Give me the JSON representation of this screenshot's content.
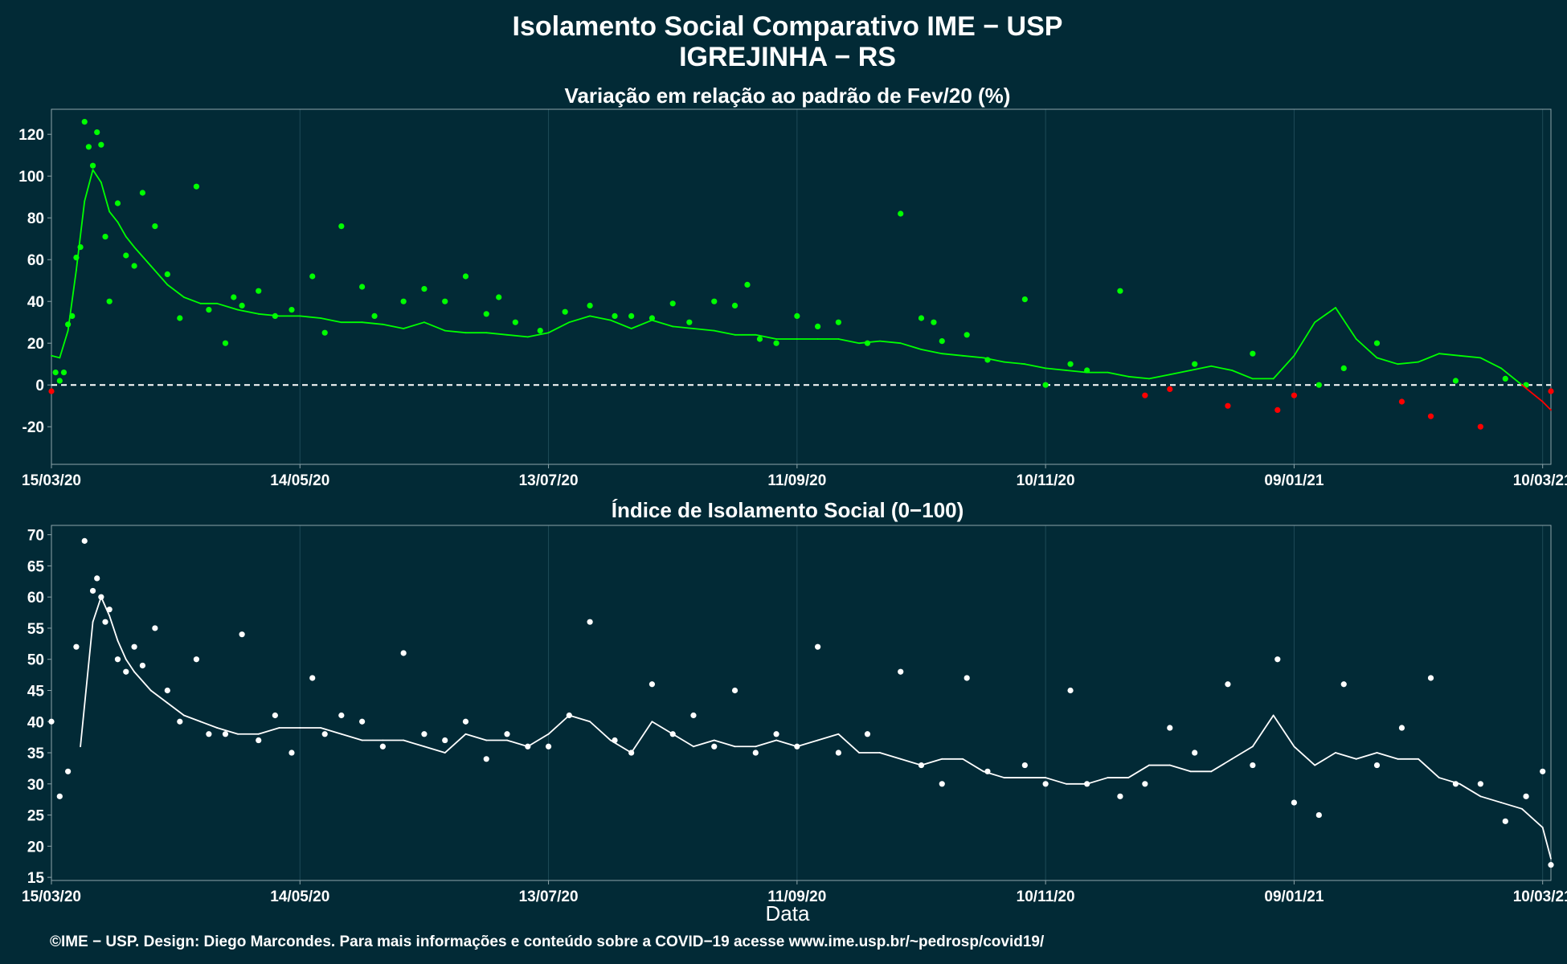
{
  "title_line1": "Isolamento Social Comparativo IME − USP",
  "title_line2": "IGREJINHA − RS",
  "caption": "©IME − USP. Design: Diego Marcondes. Para mais informações e conteúdo sobre a COVID−19 acesse www.ime.usp.br/~pedrosp/covid19/",
  "colors": {
    "background": "#022a36",
    "positive": "#00ff00",
    "negative": "#ff0000",
    "index": "#ffffff",
    "grid": "#1e4a57",
    "frame": "#8ea4aa"
  },
  "chart_data": [
    {
      "type": "scatter",
      "title": "Variação em relação ao padrão de Fev/20 (%)",
      "xlabel": "",
      "x_ticks": [
        "15/03/20",
        "14/05/20",
        "13/07/20",
        "11/09/20",
        "10/11/20",
        "09/01/21",
        "10/03/21"
      ],
      "x_range": [
        "15/03/20",
        "12/03/21"
      ],
      "ylim": [
        -38,
        132
      ],
      "y_ticks": [
        -20,
        0,
        20,
        40,
        60,
        80,
        100,
        120
      ],
      "reference_line": 0,
      "series": [
        {
          "kind": "daily_points",
          "x_days": [
            0,
            1,
            2,
            3,
            4,
            5,
            6,
            7,
            8,
            9,
            10,
            11,
            12,
            13,
            14,
            16,
            18,
            20,
            22,
            25,
            28,
            31,
            35,
            38,
            42,
            44,
            46,
            50,
            54,
            58,
            63,
            66,
            70,
            75,
            78,
            85,
            90,
            95,
            100,
            105,
            108,
            112,
            118,
            124,
            130,
            136,
            140,
            145,
            150,
            154,
            160,
            165,
            168,
            171,
            175,
            180,
            185,
            190,
            197,
            205,
            210,
            213,
            215,
            221,
            226,
            235,
            240,
            246,
            250,
            258,
            264,
            270,
            276,
            284,
            290,
            296,
            300,
            306,
            312,
            320,
            326,
            333,
            339,
            345,
            351,
            356,
            362
          ],
          "values": [
            -3,
            6,
            2,
            6,
            29,
            33,
            61,
            66,
            126,
            114,
            105,
            121,
            115,
            71,
            40,
            87,
            62,
            57,
            92,
            76,
            53,
            32,
            95,
            36,
            20,
            42,
            38,
            45,
            33,
            36,
            52,
            25,
            76,
            47,
            33,
            40,
            46,
            40,
            52,
            34,
            42,
            30,
            26,
            35,
            38,
            33,
            33,
            32,
            39,
            30,
            40,
            38,
            48,
            22,
            20,
            33,
            28,
            30,
            20,
            82,
            32,
            30,
            21,
            24,
            12,
            41,
            0,
            10,
            7,
            45,
            -5,
            -2,
            10,
            -10,
            15,
            -12,
            -5,
            0,
            8,
            20,
            -8,
            -15,
            2,
            -20,
            3,
            0,
            -3
          ]
        },
        {
          "kind": "moving_average",
          "x_days": [
            0,
            2,
            4,
            6,
            8,
            10,
            12,
            14,
            16,
            18,
            20,
            24,
            28,
            32,
            36,
            40,
            45,
            50,
            55,
            60,
            65,
            70,
            75,
            80,
            85,
            90,
            95,
            100,
            105,
            110,
            115,
            120,
            125,
            130,
            135,
            140,
            145,
            150,
            155,
            160,
            165,
            170,
            175,
            180,
            185,
            190,
            195,
            200,
            205,
            210,
            215,
            220,
            225,
            230,
            235,
            240,
            245,
            250,
            255,
            260,
            265,
            270,
            275,
            280,
            285,
            290,
            295,
            300,
            305,
            310,
            315,
            320,
            325,
            330,
            335,
            340,
            345,
            350,
            355,
            360,
            362
          ],
          "values": [
            14,
            13,
            26,
            55,
            88,
            103,
            97,
            83,
            78,
            71,
            66,
            57,
            48,
            42,
            39,
            39,
            36,
            34,
            33,
            33,
            32,
            30,
            30,
            29,
            27,
            30,
            26,
            25,
            25,
            24,
            23,
            25,
            30,
            33,
            31,
            27,
            31,
            28,
            27,
            26,
            24,
            24,
            22,
            22,
            22,
            22,
            20,
            21,
            20,
            17,
            15,
            14,
            13,
            11,
            10,
            8,
            7,
            6,
            6,
            4,
            3,
            5,
            7,
            9,
            7,
            3,
            3,
            14,
            30,
            37,
            22,
            13,
            10,
            11,
            15,
            14,
            13,
            8,
            0,
            -8,
            -12
          ]
        }
      ]
    },
    {
      "type": "scatter",
      "title": "Índice de Isolamento Social (0−100)",
      "xlabel": "Data",
      "x_ticks": [
        "15/03/20",
        "14/05/20",
        "13/07/20",
        "11/09/20",
        "10/11/20",
        "09/01/21",
        "10/03/21"
      ],
      "x_range": [
        "15/03/20",
        "12/03/21"
      ],
      "ylim": [
        14.5,
        71.5
      ],
      "y_ticks": [
        15,
        20,
        25,
        30,
        35,
        40,
        45,
        50,
        55,
        60,
        65,
        70
      ],
      "series": [
        {
          "kind": "daily_points",
          "x_days": [
            0,
            2,
            4,
            6,
            8,
            10,
            11,
            12,
            13,
            14,
            16,
            18,
            20,
            22,
            25,
            28,
            31,
            35,
            38,
            42,
            46,
            50,
            54,
            58,
            63,
            66,
            70,
            75,
            80,
            85,
            90,
            95,
            100,
            105,
            110,
            115,
            120,
            125,
            130,
            136,
            140,
            145,
            150,
            155,
            160,
            165,
            170,
            175,
            180,
            185,
            190,
            197,
            205,
            210,
            215,
            221,
            226,
            235,
            240,
            246,
            250,
            258,
            264,
            270,
            276,
            284,
            290,
            296,
            300,
            306,
            312,
            320,
            326,
            333,
            339,
            345,
            351,
            356,
            360,
            362
          ],
          "values": [
            40,
            28,
            32,
            52,
            69,
            61,
            63,
            60,
            56,
            58,
            50,
            48,
            52,
            49,
            55,
            45,
            40,
            50,
            38,
            38,
            54,
            37,
            41,
            35,
            47,
            38,
            41,
            40,
            36,
            51,
            38,
            37,
            40,
            34,
            38,
            36,
            36,
            41,
            56,
            37,
            35,
            46,
            38,
            41,
            36,
            45,
            35,
            38,
            36,
            52,
            35,
            38,
            48,
            33,
            30,
            47,
            32,
            33,
            30,
            45,
            30,
            28,
            30,
            39,
            35,
            46,
            33,
            50,
            27,
            25,
            46,
            33,
            39,
            47,
            30,
            30,
            24,
            28,
            32,
            17
          ]
        },
        {
          "kind": "moving_average",
          "x_days": [
            7,
            10,
            12,
            14,
            16,
            18,
            20,
            24,
            28,
            32,
            36,
            40,
            45,
            50,
            55,
            60,
            65,
            70,
            75,
            80,
            85,
            90,
            95,
            100,
            105,
            110,
            115,
            120,
            125,
            130,
            135,
            140,
            145,
            150,
            155,
            160,
            165,
            170,
            175,
            180,
            185,
            190,
            195,
            200,
            205,
            210,
            215,
            220,
            225,
            230,
            235,
            240,
            245,
            250,
            255,
            260,
            265,
            270,
            275,
            280,
            285,
            290,
            295,
            300,
            305,
            310,
            315,
            320,
            325,
            330,
            335,
            340,
            345,
            350,
            355,
            360,
            362
          ],
          "values": [
            36,
            56,
            60,
            57,
            53,
            50,
            48,
            45,
            43,
            41,
            40,
            39,
            38,
            38,
            39,
            39,
            39,
            38,
            37,
            37,
            37,
            36,
            35,
            38,
            37,
            37,
            36,
            38,
            41,
            40,
            37,
            35,
            40,
            38,
            36,
            37,
            36,
            36,
            37,
            36,
            37,
            38,
            35,
            35,
            34,
            33,
            34,
            34,
            32,
            31,
            31,
            31,
            30,
            30,
            31,
            31,
            33,
            33,
            32,
            32,
            34,
            36,
            41,
            36,
            33,
            35,
            34,
            35,
            34,
            34,
            31,
            30,
            28,
            27,
            26,
            23,
            18
          ]
        }
      ]
    }
  ]
}
